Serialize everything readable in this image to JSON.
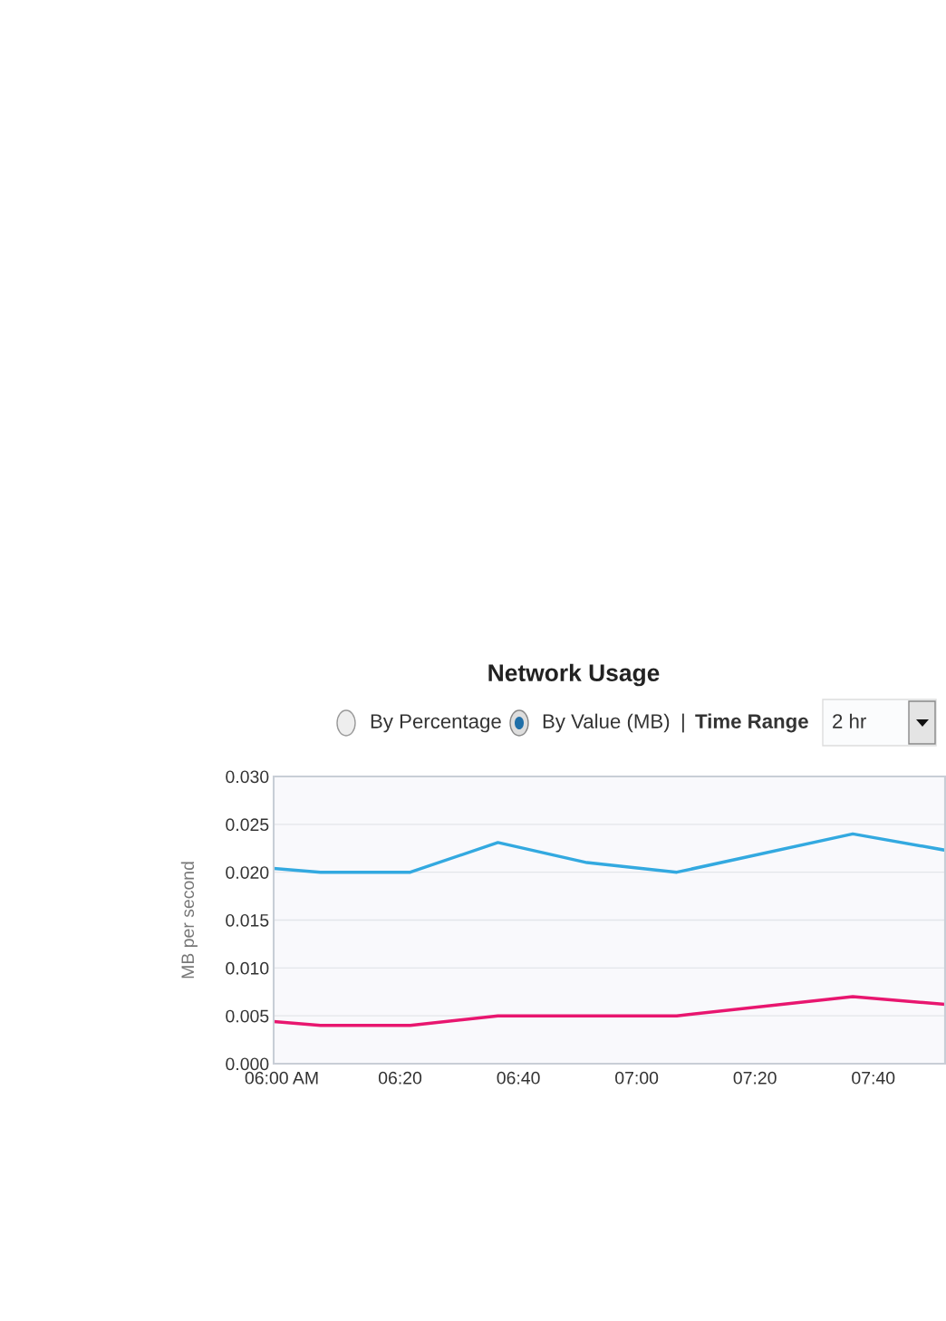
{
  "chart_data": {
    "type": "line",
    "title": "Network Usage",
    "ylabel": "MB per second",
    "annotations": [
      "By Percentage",
      "By Value (MB)",
      "|",
      "Time Range",
      "2 hr"
    ],
    "series": [
      {
        "color": "#33a9e0",
        "x": [
          5.977,
          6.109,
          6.362,
          6.609,
          6.86,
          7.113,
          7.609,
          7.869
        ],
        "values": [
          0.0204,
          0.02,
          0.02,
          0.0231,
          0.021,
          0.02,
          0.024,
          0.0223
        ]
      },
      {
        "color": "#e8166f",
        "x": [
          5.977,
          6.109,
          6.362,
          6.609,
          7.113,
          7.609,
          7.869
        ],
        "values": [
          0.0044,
          0.004,
          0.004,
          0.005,
          0.005,
          0.007,
          0.0062
        ]
      }
    ],
    "xlim": [
      5.977,
      7.869
    ],
    "xticks": [
      {
        "value": 6.0,
        "label": "06:00 AM"
      },
      {
        "value": 6.3333,
        "label": "06:20"
      },
      {
        "value": 6.6667,
        "label": "06:40"
      },
      {
        "value": 7.0,
        "label": "07:00"
      },
      {
        "value": 7.3333,
        "label": "07:20"
      },
      {
        "value": 7.6667,
        "label": "07:40"
      }
    ],
    "ylim": [
      0,
      0.03
    ],
    "yticks": [
      {
        "value": 0,
        "label": "0.000"
      },
      {
        "value": 0.005,
        "label": "0.005"
      },
      {
        "value": 0.01,
        "label": "0.010"
      },
      {
        "value": 0.015,
        "label": "0.015"
      },
      {
        "value": 0.02,
        "label": "0.020"
      },
      {
        "value": 0.025,
        "label": "0.025"
      },
      {
        "value": 0.03,
        "label": "0.030"
      }
    ],
    "grid": "y",
    "marker": "none",
    "line_style": "solid",
    "legend": false
  }
}
